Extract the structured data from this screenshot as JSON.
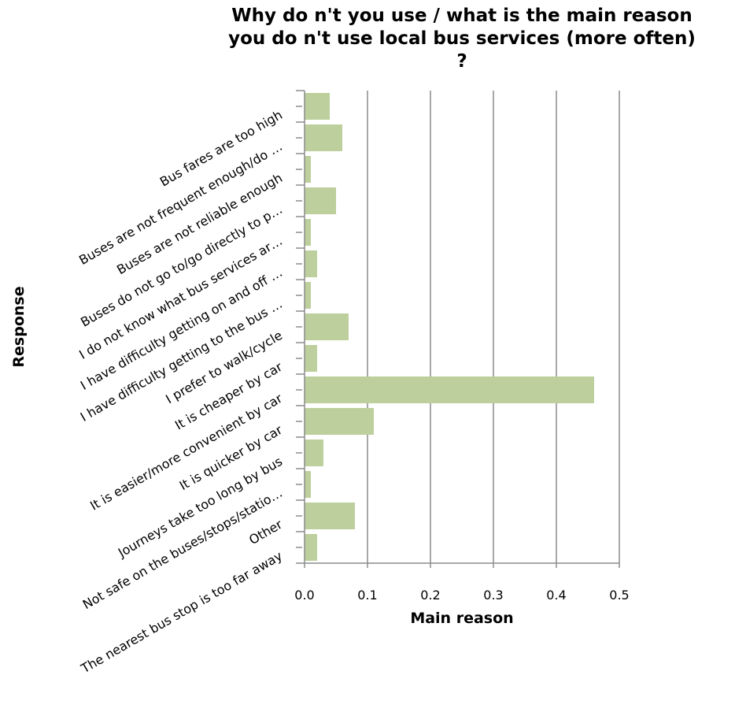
{
  "chart_data": {
    "type": "bar",
    "orientation": "horizontal",
    "title_lines": [
      "Why do n't you use / what is the main reason",
      "you do n't use local bus services (more often)",
      "?"
    ],
    "xlabel": "Main reason",
    "ylabel": "Response",
    "xlim": [
      0,
      0.5
    ],
    "xticks": [
      "0.0",
      "0.1",
      "0.2",
      "0.3",
      "0.4",
      "0.5"
    ],
    "grid": "vertical",
    "bar_color": "#bccf9c",
    "categories": [
      "Bus fares are too high",
      "Buses are not frequent enough/do …",
      "Buses are not reliable enough",
      "Buses do not go to/go directly to p…",
      "I do not know what bus services ar…",
      "I have difficulty getting on and off …",
      "I have difficulty getting to the bus …",
      "I prefer to walk/cycle",
      "It is cheaper by car",
      "It is easier/more convenient by car",
      "It is quicker by car",
      "Journeys take too long by bus",
      "Not safe on the buses/stops/statio…",
      "Other",
      "The nearest bus stop is too far away"
    ],
    "values": [
      0.04,
      0.06,
      0.01,
      0.05,
      0.01,
      0.02,
      0.01,
      0.07,
      0.02,
      0.46,
      0.11,
      0.03,
      0.01,
      0.08,
      0.02
    ]
  }
}
